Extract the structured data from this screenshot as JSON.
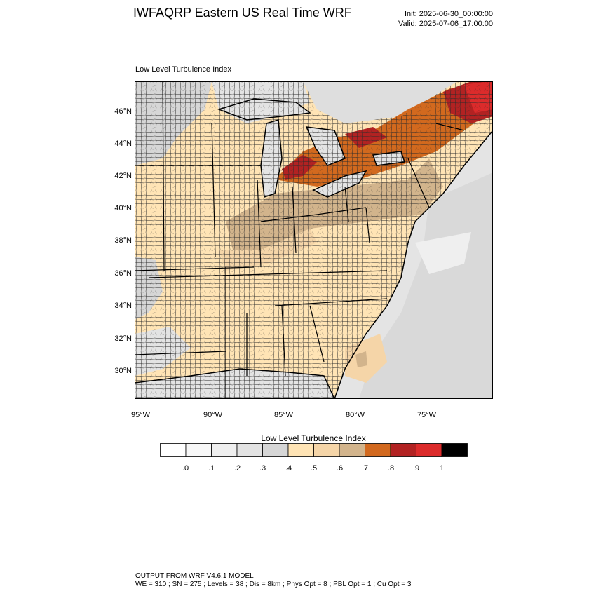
{
  "title": "IWFAQRP Eastern US Real Time WRF",
  "init_time": "Init: 2025-06-30_00:00:00",
  "valid_time": "Valid: 2025-07-06_17:00:00",
  "map": {
    "field_label": "Low Level Turbulence Index",
    "lat_labels": [
      "46°N",
      "44°N",
      "42°N",
      "40°N",
      "38°N",
      "36°N",
      "34°N",
      "32°N",
      "30°N"
    ],
    "lon_labels": [
      "95°W",
      "90°W",
      "85°W",
      "80°W",
      "75°W"
    ]
  },
  "colorbar": {
    "title": "Low Level Turbulence Index",
    "tick_labels": [
      ".0",
      ".1",
      ".2",
      ".3",
      ".4",
      ".5",
      ".6",
      ".7",
      ".8",
      ".9",
      "1"
    ],
    "colors": [
      "#ffffff",
      "#f7f7f7",
      "#efefef",
      "#e3e3e3",
      "#d6d6d6",
      "#ffe4b5",
      "#f5d5a8",
      "#d2b48c",
      "#d2691e",
      "#b22222",
      "#dc2b2b",
      "#000000"
    ]
  },
  "footer": {
    "line1": "OUTPUT FROM WRF V4.6.1 MODEL",
    "line2": "WE = 310 ; SN = 275 ; Levels = 38 ; Dis = 8km ; Phys Opt = 8 ; PBL Opt = 1 ; Cu Opt = 3"
  }
}
